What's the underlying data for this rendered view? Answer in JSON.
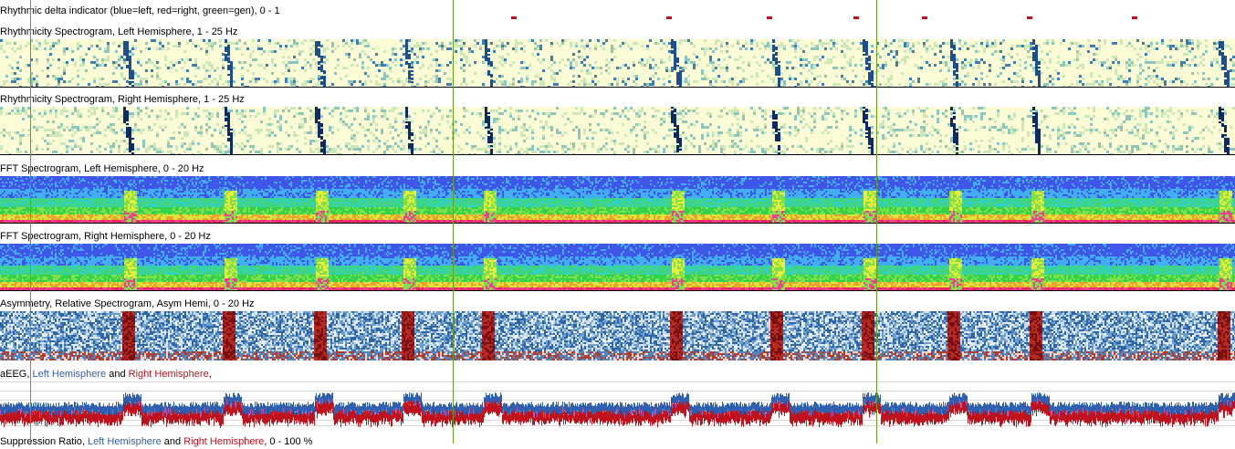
{
  "panels": {
    "rhythmic_delta": {
      "title": "Rhythmic delta indicator (blue=left, red=right, green=gen),  0 - 1"
    },
    "rhythm_left": {
      "title": "Rhythmicity Spectrogram, Left Hemisphere, 1 - 25 Hz"
    },
    "rhythm_right": {
      "title": "Rhythmicity Spectrogram, Right Hemisphere, 1 - 25 Hz"
    },
    "fft_left": {
      "title": "FFT Spectrogram, Left Hemisphere, 0 - 20 Hz"
    },
    "fft_right": {
      "title": "FFT Spectrogram, Right Hemisphere, 0 - 20 Hz"
    },
    "asymmetry": {
      "title": "Asymmetry, Relative Spectrogram, Asym Hemi, 0 - 20 Hz"
    },
    "aeeg": {
      "prefix": "aEEG, ",
      "left": "Left Hemisphere",
      "and": " and ",
      "right": "Right Hemisphere",
      "suffix": ","
    },
    "suppression": {
      "prefix": "Suppression Ratio, ",
      "left": "Left Hemisphere",
      "and": " and ",
      "right": "Right Hemisphere",
      "suffix": ",  0 - 100 %"
    }
  },
  "colors": {
    "left_hemisphere": "#2f5fb0",
    "right_hemisphere": "#c0121d",
    "cursor_line": "#6a9e1a",
    "event_marker": "#c0121d"
  },
  "cursor_lines": 3
}
